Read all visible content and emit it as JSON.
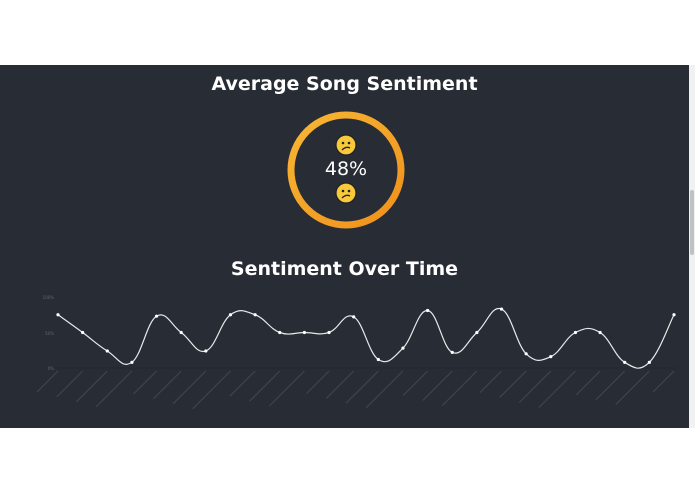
{
  "gauge": {
    "title": "Average Song Sentiment",
    "value": 48,
    "label": "48%",
    "emoji": "confused-face",
    "colors": {
      "ring_start": "#f7b733",
      "ring_end": "#f0901c"
    }
  },
  "chart_data": {
    "type": "line",
    "title": "Sentiment Over Time",
    "ylim": [
      0,
      100
    ],
    "y_ticks": [
      "0%",
      "50%",
      "100%"
    ],
    "x_tick_labels_legible": false,
    "smooth": true,
    "grid": false,
    "line_color": "#ffffff",
    "values": [
      75,
      50,
      24,
      8,
      73,
      50,
      24,
      75,
      75,
      50,
      50,
      50,
      72,
      12,
      28,
      81,
      22,
      50,
      83,
      20,
      16,
      50,
      50,
      8,
      8,
      75
    ]
  },
  "colors": {
    "panel_bg": "#282c35",
    "page_bg": "#ffffff"
  }
}
